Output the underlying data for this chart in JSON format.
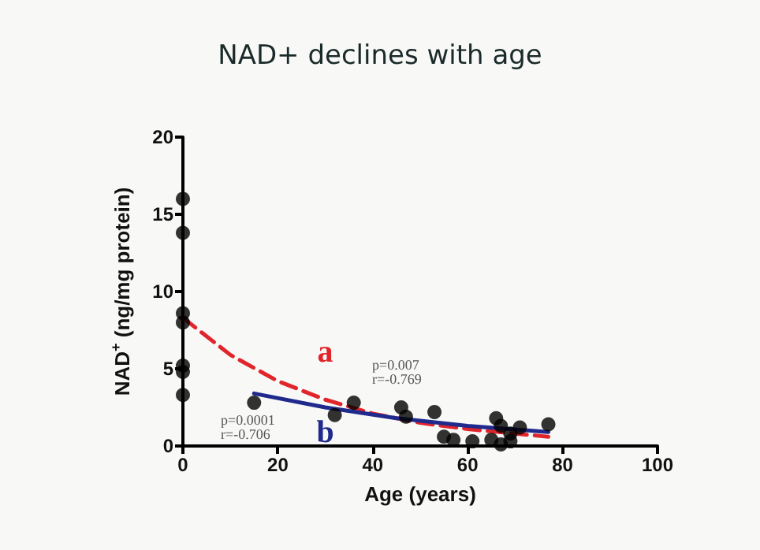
{
  "chart_data": {
    "type": "scatter",
    "title": "NAD+ declines with age",
    "xlabel": "Age (years)",
    "ylabel": "NAD$^{+}$ (ng/mg protein)",
    "xlim": [
      0,
      100
    ],
    "xticks": [
      0,
      20,
      40,
      60,
      80,
      100
    ],
    "ylim": [
      0,
      20
    ],
    "yticks": [
      0,
      5,
      10,
      15,
      20
    ],
    "grid": false,
    "marker": "circle",
    "series": [
      {
        "color": "#000000",
        "x": [
          0,
          0,
          0,
          0,
          0,
          0,
          0,
          15,
          32,
          36,
          46,
          47,
          53,
          55,
          57,
          61,
          65,
          66,
          67,
          67,
          69,
          69,
          71,
          77
        ],
        "values": [
          16,
          13.8,
          8.6,
          8,
          5.2,
          4.8,
          3.3,
          2.8,
          2.0,
          2.8,
          2.5,
          1.9,
          2.2,
          0.6,
          0.4,
          0.3,
          0.4,
          1.8,
          1.3,
          0.1,
          0.8,
          0.3,
          1.2,
          1.4
        ]
      },
      {
        "name": "a",
        "type": "line",
        "line_style": "dashed",
        "marker": "none",
        "color": "#e0252b",
        "x": [
          0,
          10,
          20,
          30,
          40,
          50,
          60,
          70,
          77
        ],
        "values": [
          8.3,
          5.9,
          4.2,
          3.0,
          2.1,
          1.5,
          1.1,
          0.8,
          0.6
        ]
      },
      {
        "name": "b",
        "type": "line",
        "line_style": "solid",
        "marker": "none",
        "color": "#1f2a8c",
        "x": [
          15,
          30,
          45,
          60,
          77
        ],
        "values": [
          3.4,
          2.5,
          1.8,
          1.3,
          0.9
        ]
      }
    ],
    "annotations": [
      "p=0.007",
      "r=-0.769",
      "p=0.0001",
      "r=-0.706"
    ]
  }
}
